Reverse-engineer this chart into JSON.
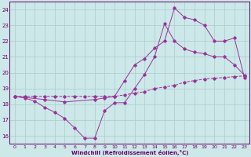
{
  "xlabel": "Windchill (Refroidissement éolien,°C)",
  "xlim": [
    -0.5,
    23.5
  ],
  "ylim": [
    15.5,
    24.5
  ],
  "yticks": [
    16,
    17,
    18,
    19,
    20,
    21,
    22,
    23,
    24
  ],
  "xticks": [
    0,
    1,
    2,
    3,
    4,
    5,
    6,
    7,
    8,
    9,
    10,
    11,
    12,
    13,
    14,
    15,
    16,
    17,
    18,
    19,
    20,
    21,
    22,
    23
  ],
  "bg_color": "#cce8e8",
  "grid_color": "#aacccc",
  "line_color": "#993399",
  "line1_x": [
    0,
    1,
    2,
    3,
    4,
    5,
    6,
    7,
    8,
    9,
    10,
    11,
    12,
    13,
    14,
    15,
    16,
    17,
    18,
    19,
    20,
    21,
    22,
    23
  ],
  "line1_y": [
    18.5,
    18.5,
    18.5,
    18.5,
    18.5,
    18.5,
    18.5,
    18.5,
    18.5,
    18.5,
    18.5,
    18.6,
    18.7,
    18.8,
    19.0,
    19.1,
    19.2,
    19.4,
    19.5,
    19.6,
    19.65,
    19.7,
    19.75,
    19.8
  ],
  "line2_x": [
    0,
    1,
    2,
    3,
    4,
    5,
    6,
    7,
    8,
    9,
    10,
    11,
    12,
    13,
    14,
    15,
    16,
    17,
    18,
    19,
    20,
    21,
    22,
    23
  ],
  "line2_y": [
    18.5,
    18.4,
    18.2,
    17.8,
    17.5,
    17.1,
    16.5,
    15.85,
    15.85,
    17.6,
    18.1,
    18.1,
    19.0,
    19.9,
    21.0,
    23.1,
    22.0,
    21.5,
    21.3,
    21.2,
    21.0,
    21.0,
    20.5,
    19.85
  ],
  "line3_x": [
    0,
    3,
    5,
    8,
    9,
    10,
    11,
    12,
    13,
    14,
    15,
    16,
    17,
    18,
    19,
    20,
    21,
    22,
    23
  ],
  "line3_y": [
    18.5,
    18.3,
    18.15,
    18.3,
    18.4,
    18.5,
    19.5,
    20.5,
    20.9,
    21.55,
    22.0,
    24.1,
    23.5,
    23.35,
    23.0,
    22.0,
    22.0,
    22.2,
    19.7
  ]
}
